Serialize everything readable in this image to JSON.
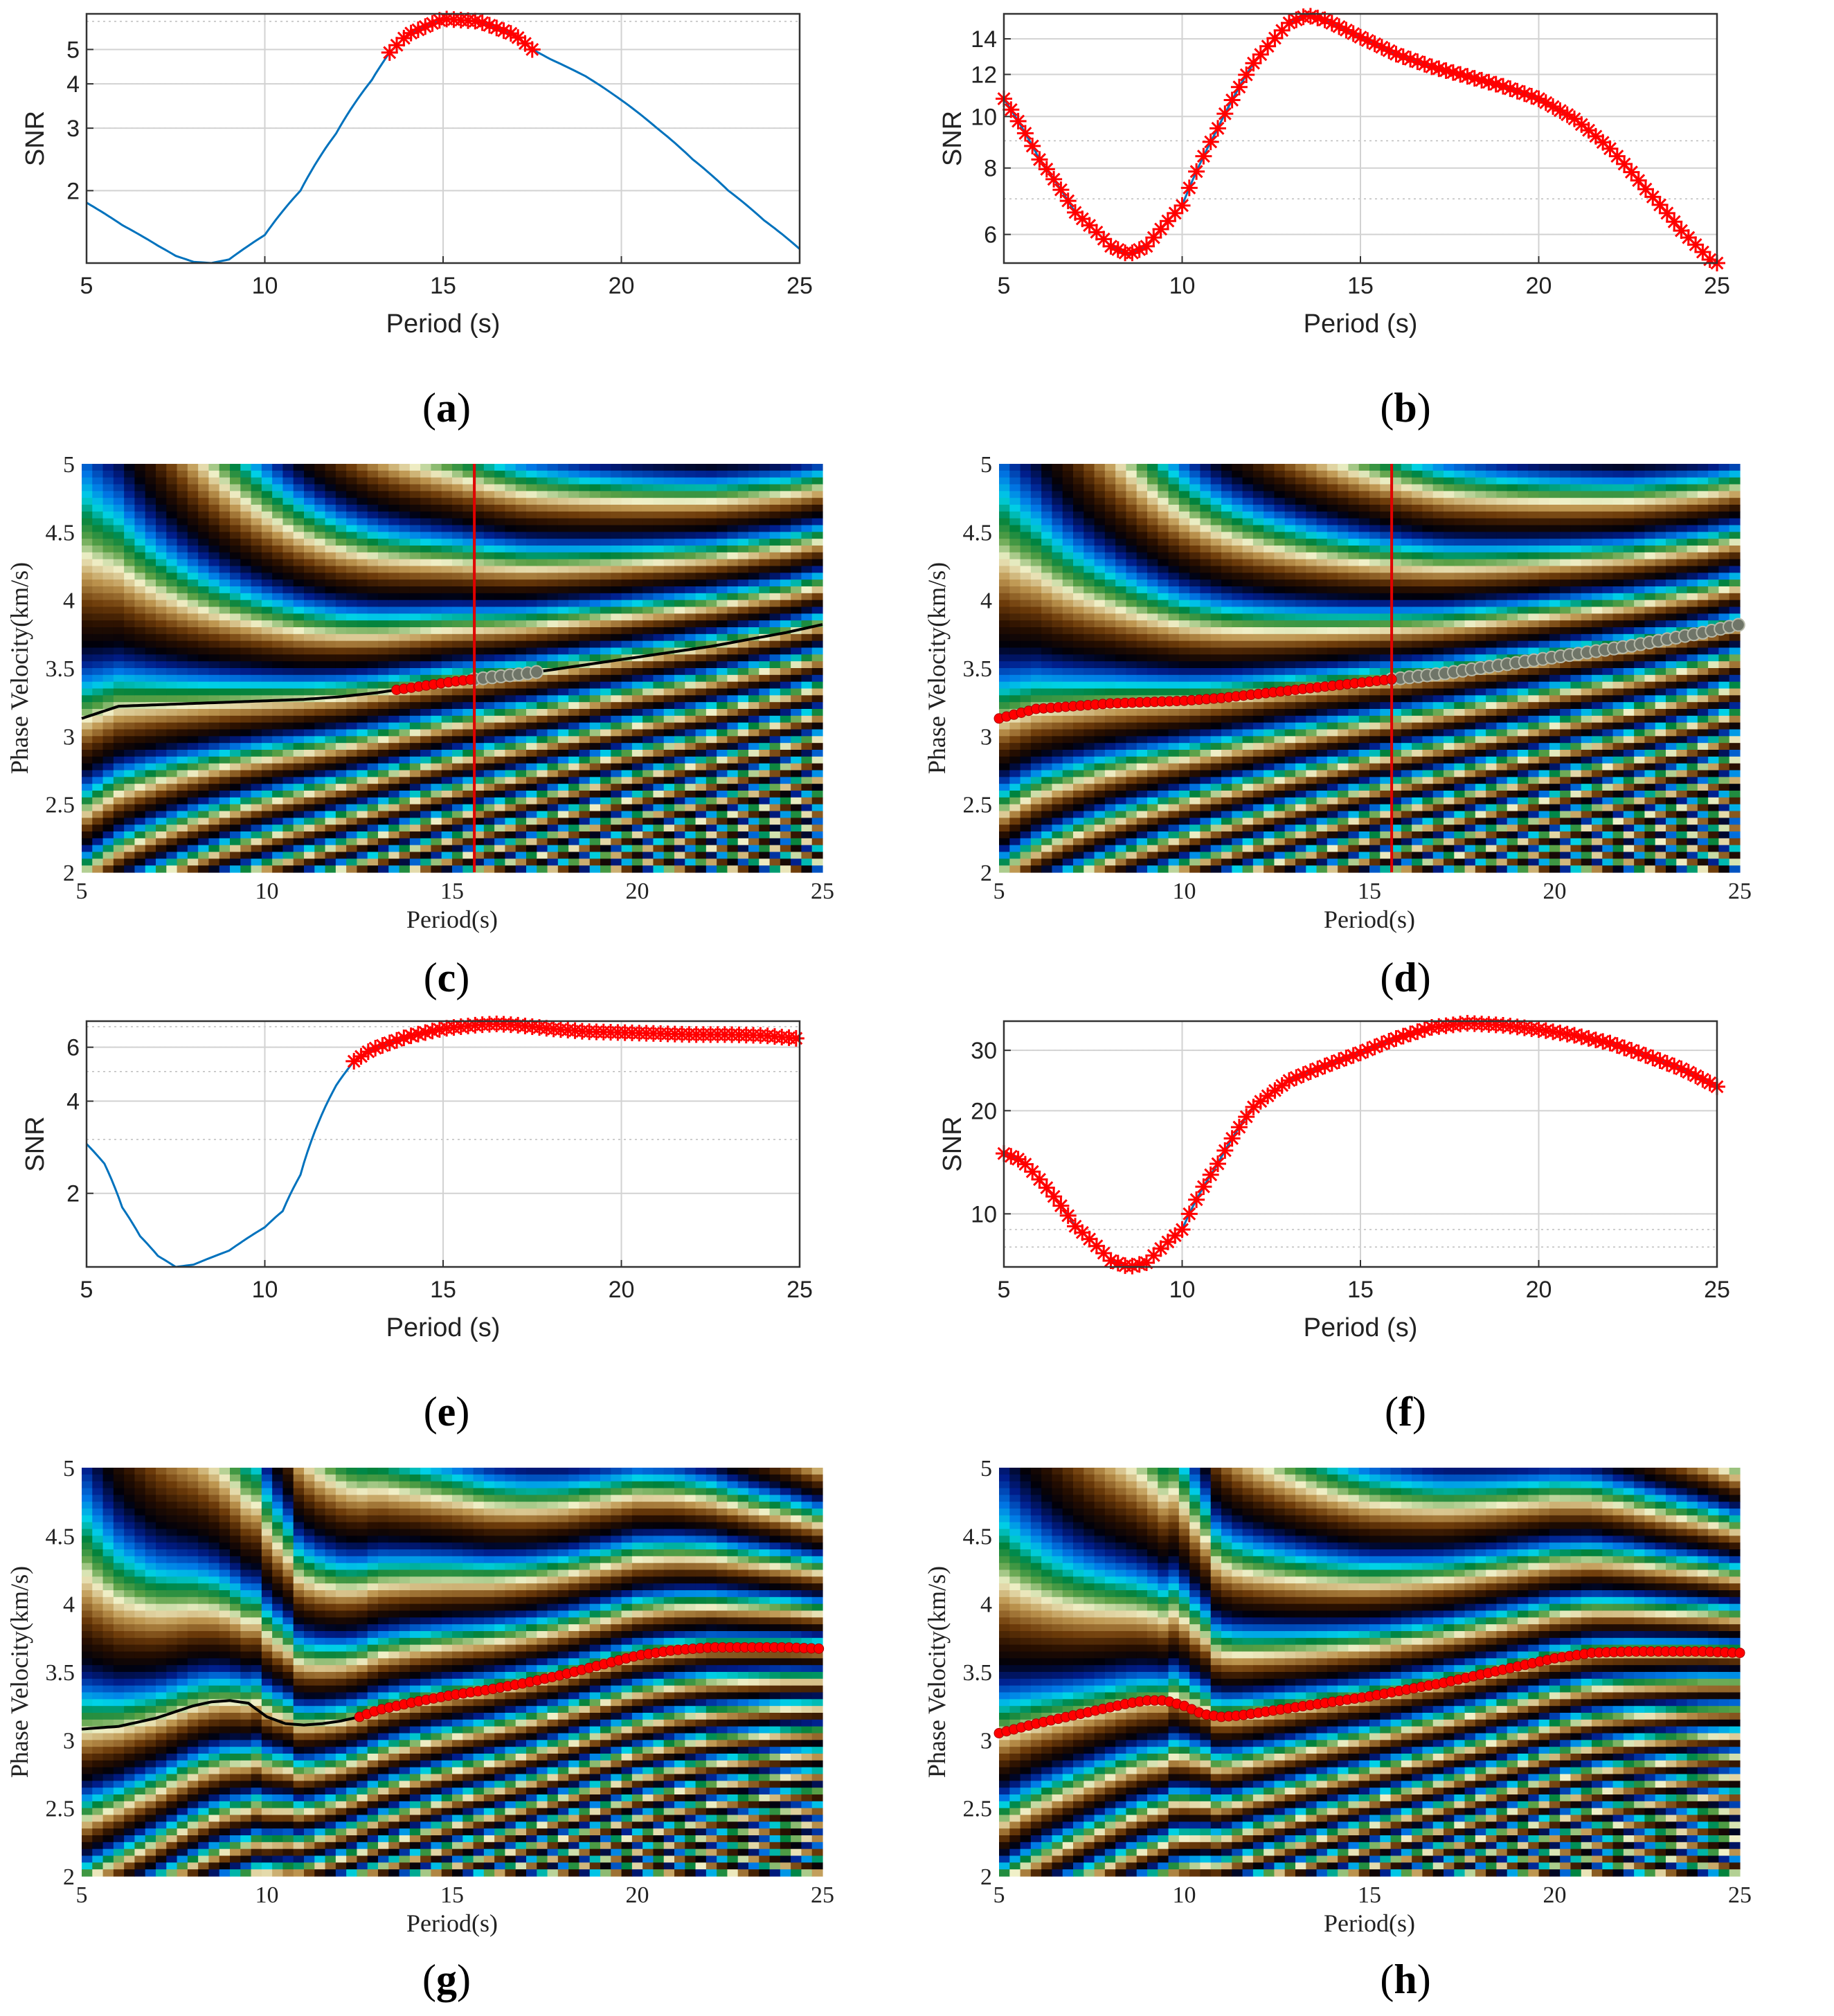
{
  "colors": {
    "blue_line": "#0072bd",
    "red_marker": "#ff0000",
    "black_curve": "#000000",
    "grey_marker": "#8a8a80",
    "grid": "#d2d2d2"
  },
  "chart_data": [
    {
      "id": "a",
      "type": "line",
      "panel": "(a)",
      "xlabel": "Period (s)",
      "ylabel": "SNR",
      "yscale": "log",
      "xlim": [
        5,
        25
      ],
      "ylim": [
        1.25,
        6.3
      ],
      "xticks": [
        "5",
        "10",
        "15",
        "20",
        "25"
      ],
      "yticks": [
        {
          "v": 2,
          "t": "2"
        },
        {
          "v": 3,
          "t": "3"
        },
        {
          "v": 4,
          "t": "4"
        },
        {
          "v": 5,
          "t": "5"
        }
      ],
      "series": [
        {
          "name": "SNR",
          "x": [
            5,
            6,
            7,
            7.5,
            8,
            8.5,
            9,
            10,
            11,
            12,
            13,
            13.5,
            14,
            15,
            16,
            17,
            17.5,
            18,
            19,
            20,
            21,
            22,
            23,
            24,
            25
          ],
          "y": [
            1.85,
            1.6,
            1.4,
            1.31,
            1.26,
            1.25,
            1.28,
            1.5,
            2.0,
            2.9,
            4.1,
            4.9,
            5.5,
            6.1,
            6.0,
            5.5,
            5.0,
            4.7,
            4.2,
            3.6,
            3.0,
            2.45,
            2.0,
            1.65,
            1.37
          ]
        }
      ],
      "selected": {
        "from": 13.5,
        "to": 17.5
      }
    },
    {
      "id": "b",
      "type": "line",
      "panel": "(b)",
      "xlabel": "Period (s)",
      "ylabel": "SNR",
      "yscale": "log",
      "xlim": [
        5,
        25
      ],
      "ylim": [
        5.3,
        15.6
      ],
      "xticks": [
        "5",
        "10",
        "15",
        "20",
        "25"
      ],
      "yticks": [
        {
          "v": 6,
          "t": "6"
        },
        {
          "v": 8,
          "t": "8"
        },
        {
          "v": 10,
          "t": "10"
        },
        {
          "v": 12,
          "t": "12"
        },
        {
          "v": 14,
          "t": "14"
        }
      ],
      "series": [
        {
          "name": "SNR",
          "x": [
            5,
            6,
            7,
            8,
            8.5,
            9,
            10,
            11,
            12,
            13,
            13.5,
            14,
            15,
            16,
            17,
            18,
            19,
            20,
            21,
            22,
            23,
            24,
            25
          ],
          "y": [
            10.8,
            8.3,
            6.6,
            5.7,
            5.5,
            5.7,
            6.8,
            9.5,
            12.6,
            15.0,
            15.5,
            15.2,
            14.1,
            13.1,
            12.4,
            11.9,
            11.4,
            10.8,
            9.9,
            8.7,
            7.3,
            6.1,
            5.2
          ]
        }
      ],
      "selected": {
        "from": 5,
        "to": 25
      }
    },
    {
      "id": "c",
      "type": "heatmap",
      "panel": "(c)",
      "xlabel": "Period(s)",
      "ylabel": "Phase Velocity(km/s)",
      "xlim": [
        5,
        25
      ],
      "ylim": [
        2,
        5
      ],
      "xticks": [
        "5",
        "10",
        "15",
        "20",
        "25"
      ],
      "yticks": [
        "2",
        "2.5",
        "3",
        "3.5",
        "4",
        "4.5",
        "5"
      ],
      "cursor_period": 15.6,
      "dispersion_curve": {
        "x": [
          5,
          6,
          7,
          8,
          9,
          10,
          11,
          12,
          13,
          14,
          15,
          16,
          17,
          18,
          19,
          20,
          21,
          22,
          23,
          24,
          25
        ],
        "y": [
          3.13,
          3.22,
          3.23,
          3.24,
          3.25,
          3.26,
          3.27,
          3.29,
          3.32,
          3.36,
          3.4,
          3.43,
          3.46,
          3.5,
          3.54,
          3.58,
          3.62,
          3.66,
          3.71,
          3.76,
          3.82
        ]
      },
      "picked": {
        "from": 13.5,
        "to": 15.6
      },
      "unpicked": {
        "from": 15.6,
        "to": 17.5
      },
      "variant": "simple"
    },
    {
      "id": "d",
      "type": "heatmap",
      "panel": "(d)",
      "xlabel": "Period(s)",
      "ylabel": "Phase Velocity(km/s)",
      "xlim": [
        5,
        25
      ],
      "ylim": [
        2,
        5
      ],
      "xticks": [
        "5",
        "10",
        "15",
        "20",
        "25"
      ],
      "yticks": [
        "2",
        "2.5",
        "3",
        "3.5",
        "4",
        "4.5",
        "5"
      ],
      "cursor_period": 15.6,
      "dispersion_curve": {
        "x": [
          5,
          6,
          7,
          8,
          9,
          10,
          11,
          12,
          13,
          14,
          15,
          16,
          17,
          18,
          19,
          20,
          21,
          22,
          23,
          24,
          25
        ],
        "y": [
          3.13,
          3.2,
          3.22,
          3.24,
          3.25,
          3.26,
          3.28,
          3.31,
          3.34,
          3.37,
          3.4,
          3.43,
          3.46,
          3.5,
          3.54,
          3.58,
          3.62,
          3.66,
          3.71,
          3.76,
          3.82
        ]
      },
      "picked": {
        "from": 5,
        "to": 15.6
      },
      "unpicked": {
        "from": 15.6,
        "to": 25
      },
      "variant": "simple"
    },
    {
      "id": "e",
      "type": "line",
      "panel": "(e)",
      "xlabel": "Period (s)",
      "ylabel": "SNR",
      "yscale": "log",
      "xlim": [
        5,
        25
      ],
      "ylim": [
        1.15,
        7.3
      ],
      "xticks": [
        "5",
        "10",
        "15",
        "20",
        "25"
      ],
      "yticks": [
        {
          "v": 2,
          "t": "2"
        },
        {
          "v": 4,
          "t": "4"
        },
        {
          "v": 6,
          "t": "6"
        }
      ],
      "series": [
        {
          "name": "SNR",
          "x": [
            5,
            5.5,
            6,
            6.5,
            7,
            7.5,
            8,
            9,
            10,
            10.5,
            11,
            11.5,
            12,
            12.5,
            13,
            14,
            15,
            16,
            16.5,
            17,
            18,
            19,
            20,
            21,
            22,
            23,
            24,
            25
          ],
          "y": [
            2.9,
            2.5,
            1.8,
            1.45,
            1.25,
            1.15,
            1.17,
            1.3,
            1.55,
            1.75,
            2.3,
            3.4,
            4.5,
            5.4,
            5.9,
            6.5,
            6.9,
            7.1,
            7.15,
            7.1,
            6.9,
            6.75,
            6.7,
            6.65,
            6.6,
            6.6,
            6.55,
            6.4
          ]
        }
      ],
      "selected": {
        "from": 12.5,
        "to": 25
      }
    },
    {
      "id": "f",
      "type": "line",
      "panel": "(f)",
      "xlabel": "Period (s)",
      "ylabel": "SNR",
      "yscale": "log",
      "xlim": [
        5,
        25
      ],
      "ylim": [
        7.0,
        36.5
      ],
      "xticks": [
        "5",
        "10",
        "15",
        "20",
        "25"
      ],
      "yticks": [
        {
          "v": 10,
          "t": "10"
        },
        {
          "v": 20,
          "t": "20"
        },
        {
          "v": 30,
          "t": "30"
        }
      ],
      "series": [
        {
          "name": "SNR",
          "x": [
            5,
            5.5,
            6,
            7,
            8,
            8.5,
            9,
            10,
            11,
            12,
            13,
            14,
            15,
            16,
            17,
            18,
            19,
            20,
            21,
            22,
            23,
            24,
            25
          ],
          "y": [
            15,
            14.3,
            12.6,
            9.2,
            7.3,
            7.0,
            7.2,
            9.0,
            14.0,
            20.5,
            24.5,
            27.0,
            29.5,
            32.5,
            35.0,
            36.0,
            35.5,
            34.5,
            33.2,
            31.5,
            29.0,
            26.5,
            23.5
          ]
        }
      ],
      "selected": {
        "from": 5,
        "to": 25
      }
    },
    {
      "id": "g",
      "type": "heatmap",
      "panel": "(g)",
      "xlabel": "Period(s)",
      "ylabel": "Phase Velocity(km/s)",
      "xlim": [
        5,
        25
      ],
      "ylim": [
        2,
        5
      ],
      "xticks": [
        "5",
        "10",
        "15",
        "20",
        "25"
      ],
      "yticks": [
        "2",
        "2.5",
        "3",
        "3.5",
        "4",
        "4.5",
        "5"
      ],
      "dispersion_curve": {
        "x": [
          5,
          6,
          7,
          8,
          8.5,
          9,
          9.5,
          10,
          10.5,
          11,
          11.5,
          12,
          12.5,
          13,
          14,
          15,
          16,
          17,
          18,
          19,
          20,
          21,
          22,
          23,
          24,
          25
        ],
        "y": [
          3.08,
          3.1,
          3.16,
          3.25,
          3.28,
          3.29,
          3.27,
          3.17,
          3.12,
          3.11,
          3.12,
          3.14,
          3.17,
          3.22,
          3.28,
          3.33,
          3.37,
          3.42,
          3.48,
          3.55,
          3.62,
          3.66,
          3.68,
          3.68,
          3.68,
          3.67
        ]
      },
      "picked": {
        "from": 12.5,
        "to": 25
      },
      "variant": "kink"
    },
    {
      "id": "h",
      "type": "heatmap",
      "panel": "(h)",
      "xlabel": "Period(s)",
      "ylabel": "Phase Velocity(km/s)",
      "xlim": [
        5,
        25
      ],
      "ylim": [
        2,
        5
      ],
      "xticks": [
        "5",
        "10",
        "15",
        "20",
        "25"
      ],
      "yticks": [
        "2",
        "2.5",
        "3",
        "3.5",
        "4",
        "4.5",
        "5"
      ],
      "dispersion_curve": {
        "x": [
          5,
          6,
          7,
          8,
          8.5,
          9,
          9.5,
          10,
          10.5,
          11,
          11.5,
          12,
          12.5,
          13,
          14,
          15,
          16,
          17,
          18,
          19,
          20,
          21,
          22,
          23,
          24,
          25
        ],
        "y": [
          3.05,
          3.12,
          3.18,
          3.24,
          3.27,
          3.29,
          3.29,
          3.25,
          3.19,
          3.17,
          3.18,
          3.2,
          3.22,
          3.24,
          3.28,
          3.32,
          3.37,
          3.42,
          3.48,
          3.54,
          3.6,
          3.64,
          3.65,
          3.65,
          3.65,
          3.64
        ]
      },
      "picked": {
        "from": 5,
        "to": 25
      },
      "variant": "kink"
    }
  ],
  "captions": [
    {
      "id": "a",
      "letter": "a"
    },
    {
      "id": "b",
      "letter": "b"
    },
    {
      "id": "c",
      "letter": "c"
    },
    {
      "id": "d",
      "letter": "d"
    },
    {
      "id": "e",
      "letter": "e"
    },
    {
      "id": "f",
      "letter": "f"
    },
    {
      "id": "g",
      "letter": "g"
    },
    {
      "id": "h",
      "letter": "h"
    }
  ]
}
